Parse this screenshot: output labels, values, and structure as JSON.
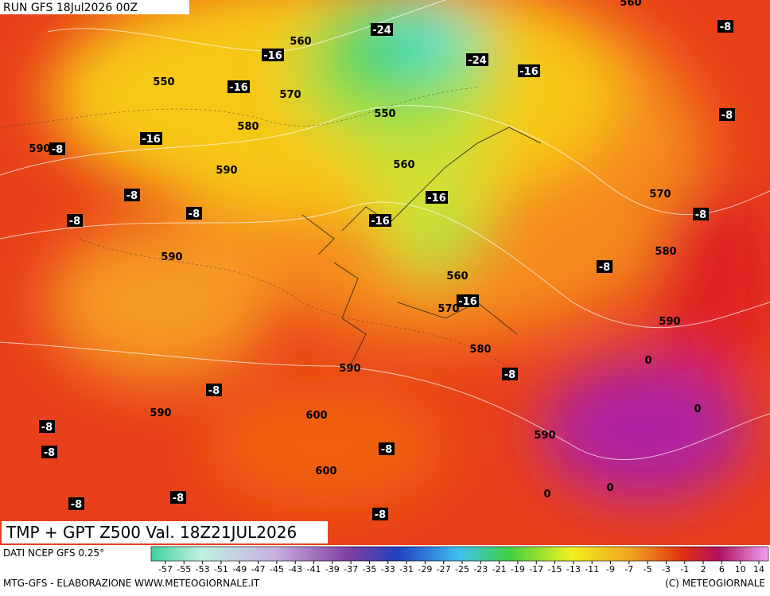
{
  "header": {
    "run": "RUN GFS 18Jul2026 00Z"
  },
  "map": {
    "labels": [
      560,
      -24,
      -24,
      -16,
      -8,
      -8,
      560,
      -16,
      550,
      -16,
      570,
      550,
      580,
      -16,
      590,
      -8,
      590,
      560,
      -8,
      -16,
      570,
      -8,
      -8,
      -16,
      -8,
      590,
      580,
      -8,
      560,
      -16,
      570,
      590,
      580,
      0,
      590,
      -8,
      -8,
      0,
      590,
      600,
      -8,
      590,
      -8,
      -8,
      600,
      0,
      0,
      -8,
      -8,
      -8
    ]
  },
  "footer": {
    "title": "TMP + GPT Z500 Val. 18Z21JUL2026",
    "source": "DATI NCEP GFS 0.25°",
    "credit": "MTG-GFS - ELABORAZIONE WWW.METEOGIORNALE.IT",
    "copyright": "(C) METEOGIORNALE"
  },
  "colorbar": {
    "ticks": [
      -57,
      -55,
      -53,
      -51,
      -49,
      -47,
      -45,
      -43,
      -41,
      -39,
      -37,
      -35,
      -33,
      -31,
      -29,
      -27,
      -25,
      -23,
      -21,
      -19,
      -17,
      -15,
      -13,
      -11,
      -9,
      -7,
      -5,
      -3,
      -1,
      2,
      6,
      10,
      14
    ]
  }
}
